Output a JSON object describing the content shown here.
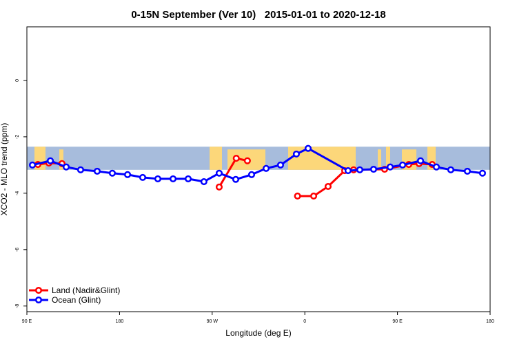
{
  "chart_data": {
    "type": "line",
    "title": "0-15N September (Ver 10)   2015-01-01 to 2020-12-18",
    "xlabel": "Longitude (deg E)",
    "ylabel": "XCO2 - MLO trend (ppm)",
    "x_ticks": [
      {
        "lon_unwrapped": 90,
        "label": "90 E"
      },
      {
        "lon_unwrapped": 180,
        "label": "180"
      },
      {
        "lon_unwrapped": 270,
        "label": "90 W"
      },
      {
        "lon_unwrapped": 360,
        "label": "0"
      },
      {
        "lon_unwrapped": 450,
        "label": "90 E"
      },
      {
        "lon_unwrapped": 540,
        "label": "180"
      }
    ],
    "xlim": [
      90,
      540
    ],
    "ylim": [
      -8.2,
      1.9
    ],
    "y_ticks": [
      0,
      -2,
      -4,
      -6,
      -8
    ],
    "map_band": {
      "lat_range": "0-15N",
      "ocean_color": "#a7bcdc",
      "land_color": "#fcd77a",
      "value_range": [
        -2.35,
        -3.17
      ]
    },
    "legend": {
      "placement": "bottom-left",
      "entries": [
        "Land (Nadir&Glint)",
        "Ocean (Glint)"
      ]
    },
    "series": [
      {
        "name": "Land (Nadir&Glint)",
        "color": "#ff0000",
        "segments": [
          [
            [
              100.7,
              -2.98
            ],
            [
              111.4,
              -2.93
            ],
            [
              124.1,
              -2.95
            ]
          ],
          [
            [
              276.8,
              -3.78
            ],
            [
              293.4,
              -2.76
            ],
            [
              304.2,
              -2.85
            ]
          ],
          [
            [
              352.9,
              -4.1
            ],
            [
              368.6,
              -4.1
            ],
            [
              382.6,
              -3.76
            ],
            [
              398.7,
              -3.2
            ],
            [
              407.4,
              -3.17
            ],
            [
              437.5,
              -3.15
            ],
            [
              461,
              -2.98
            ],
            [
              471,
              -2.95
            ],
            [
              483.7,
              -2.98
            ]
          ]
        ]
      },
      {
        "name": "Ocean (Glint)",
        "color": "#0000ff",
        "segments": [
          [
            [
              95.4,
              -3.0
            ],
            [
              112.8,
              -2.85
            ],
            [
              128.2,
              -3.07
            ],
            [
              142.2,
              -3.17
            ],
            [
              158.3,
              -3.22
            ],
            [
              173.0,
              -3.29
            ],
            [
              187.8,
              -3.34
            ],
            [
              202.5,
              -3.44
            ],
            [
              217.2,
              -3.49
            ],
            [
              232.0,
              -3.49
            ],
            [
              246.7,
              -3.49
            ],
            [
              262.0,
              -3.59
            ],
            [
              276.8,
              -3.29
            ],
            [
              292.9,
              -3.51
            ],
            [
              308.3,
              -3.34
            ],
            [
              322.4,
              -3.12
            ],
            [
              336.4,
              -3.0
            ],
            [
              351.8,
              -2.61
            ],
            [
              363.2,
              -2.41
            ],
            [
              402.0,
              -3.2
            ],
            [
              413.4,
              -3.17
            ],
            [
              426.8,
              -3.15
            ],
            [
              442.9,
              -3.07
            ],
            [
              455.0,
              -3.0
            ],
            [
              472.4,
              -2.85
            ],
            [
              487.8,
              -3.07
            ],
            [
              501.8,
              -3.17
            ],
            [
              517.9,
              -3.22
            ],
            [
              532.6,
              -3.29
            ]
          ]
        ]
      }
    ]
  }
}
